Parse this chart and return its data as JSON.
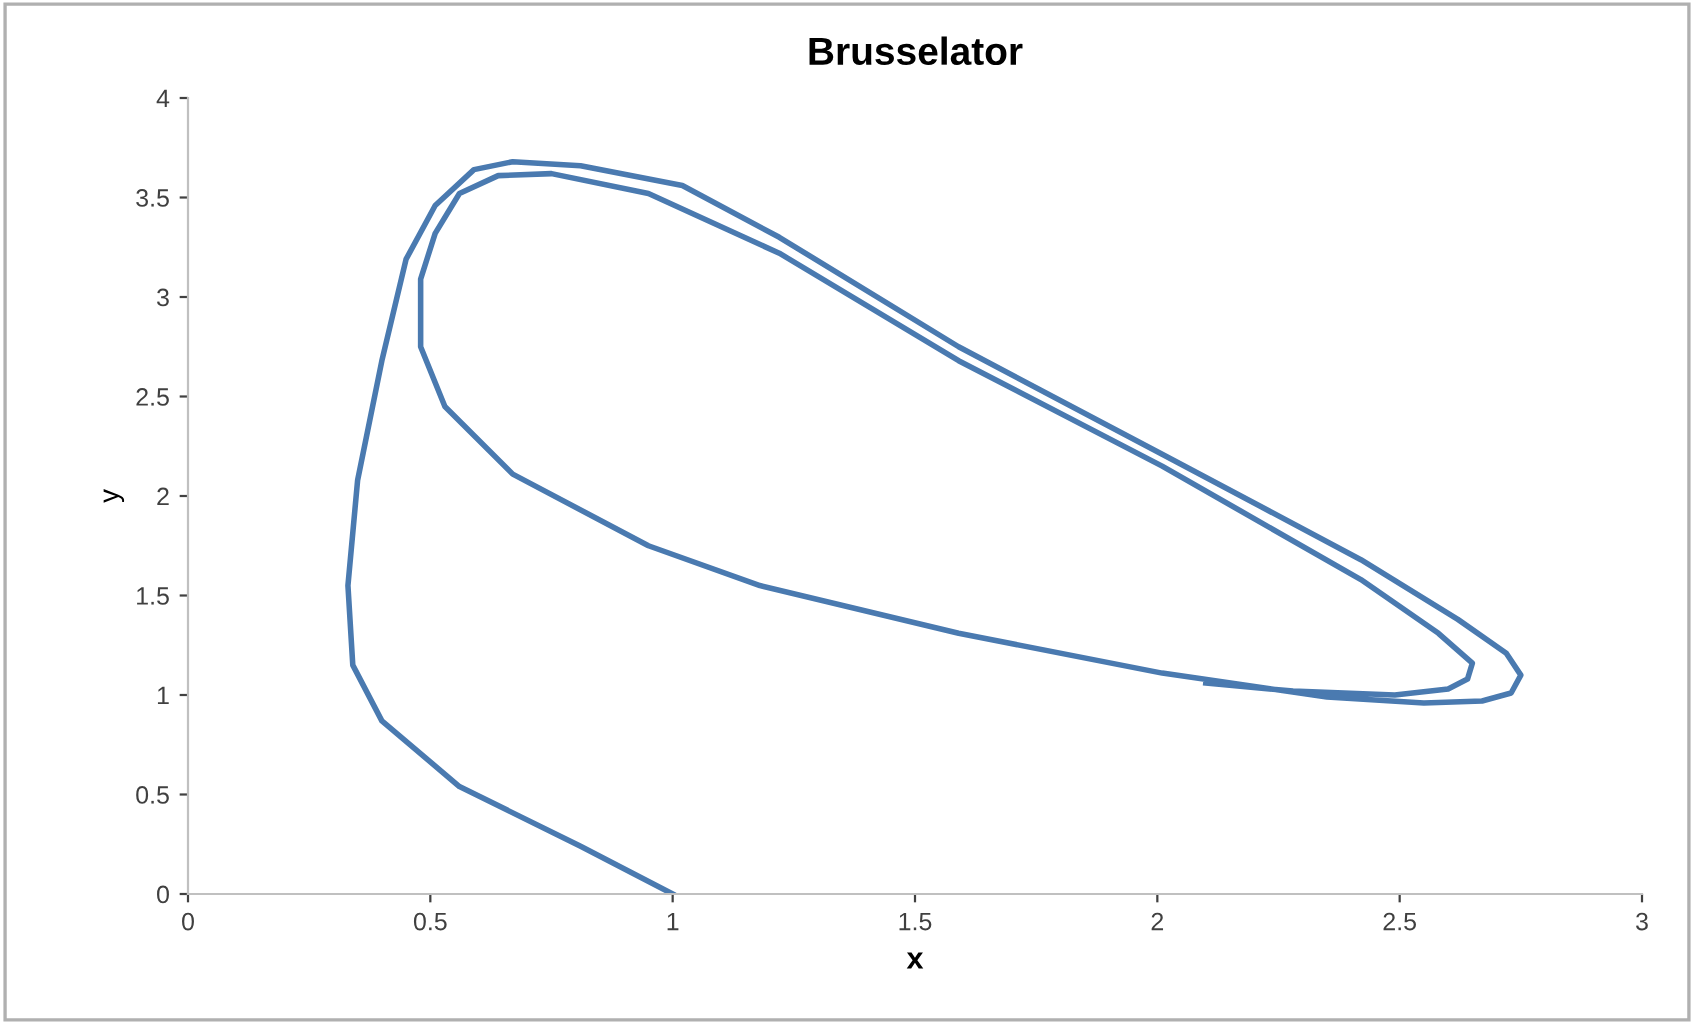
{
  "chart_data": {
    "type": "line",
    "title": "Brusselator",
    "xlabel": "x",
    "ylabel": "y",
    "xlim": [
      0,
      3
    ],
    "xticks": [
      0,
      0.5,
      1,
      1.5,
      2,
      2.5,
      3
    ],
    "ylim": [
      0,
      4
    ],
    "yticks": [
      0,
      0.5,
      1,
      1.5,
      2,
      2.5,
      3,
      3.5,
      4
    ],
    "grid": false,
    "legend": false,
    "marker": "none",
    "line_style": "solid",
    "series": [
      {
        "color": "#4a7ab0",
        "x": [
          1.0,
          0.81,
          0.56,
          0.4,
          0.34,
          0.33,
          0.35,
          0.4,
          0.45,
          0.51,
          0.59,
          0.67,
          0.81,
          1.02,
          1.22,
          1.59,
          2.01,
          2.42,
          2.62,
          2.72,
          2.75,
          2.73,
          2.67,
          2.55,
          2.35,
          2.01,
          1.59,
          1.18,
          0.95,
          0.67,
          0.53,
          0.48,
          0.48,
          0.51,
          0.56,
          0.64,
          0.75,
          0.95,
          1.22,
          1.59,
          2.01,
          2.42,
          2.58,
          2.65,
          2.64,
          2.6,
          2.49,
          2.28,
          2.1
        ],
        "values": [
          0,
          0.24,
          0.54,
          0.87,
          1.15,
          1.55,
          2.08,
          2.68,
          3.19,
          3.46,
          3.64,
          3.68,
          3.66,
          3.56,
          3.3,
          2.75,
          2.21,
          1.68,
          1.38,
          1.21,
          1.1,
          1.01,
          0.97,
          0.96,
          0.99,
          1.11,
          1.31,
          1.55,
          1.75,
          2.11,
          2.45,
          2.75,
          3.09,
          3.32,
          3.52,
          3.61,
          3.62,
          3.52,
          3.22,
          2.68,
          2.15,
          1.58,
          1.31,
          1.16,
          1.08,
          1.03,
          1.0,
          1.02,
          1.06
        ]
      }
    ]
  }
}
